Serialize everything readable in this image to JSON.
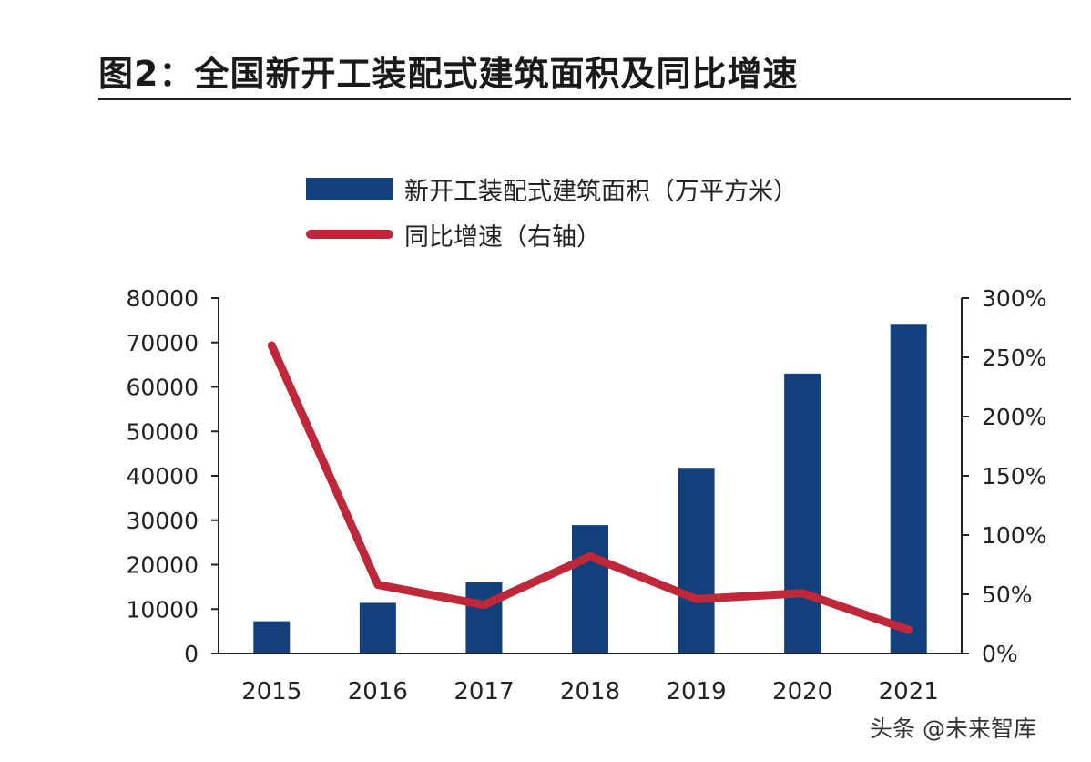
{
  "figure": {
    "title": "图2：全国新开工装配式建筑面积及同比增速"
  },
  "watermark": "头条 @未来智库",
  "colors": {
    "bar": "#143f7d",
    "line": "#c0283a",
    "axis": "#222222",
    "text": "#222222"
  },
  "chart_data": {
    "type": "bar",
    "title": "图2：全国新开工装配式建筑面积及同比增速",
    "categories": [
      "2015",
      "2016",
      "2017",
      "2018",
      "2019",
      "2020",
      "2021"
    ],
    "series": [
      {
        "name": "新开工装配式建筑面积（万平方米）",
        "type": "bar",
        "axis": "left",
        "values": [
          7260,
          11400,
          16000,
          28900,
          41800,
          63000,
          74000
        ]
      },
      {
        "name": "同比增速（右轴）",
        "type": "line",
        "axis": "right",
        "values": [
          260,
          58,
          41,
          82,
          46,
          51,
          20
        ]
      }
    ],
    "y_left": {
      "range": [
        0,
        80000
      ],
      "ticks": [
        "0",
        "10000",
        "20000",
        "30000",
        "40000",
        "50000",
        "60000",
        "70000",
        "80000"
      ]
    },
    "y_right": {
      "range": [
        0,
        300
      ],
      "unit": "%",
      "ticks": [
        "0%",
        "50%",
        "100%",
        "150%",
        "200%",
        "250%",
        "300%"
      ]
    },
    "legend": "top",
    "grid": false
  }
}
